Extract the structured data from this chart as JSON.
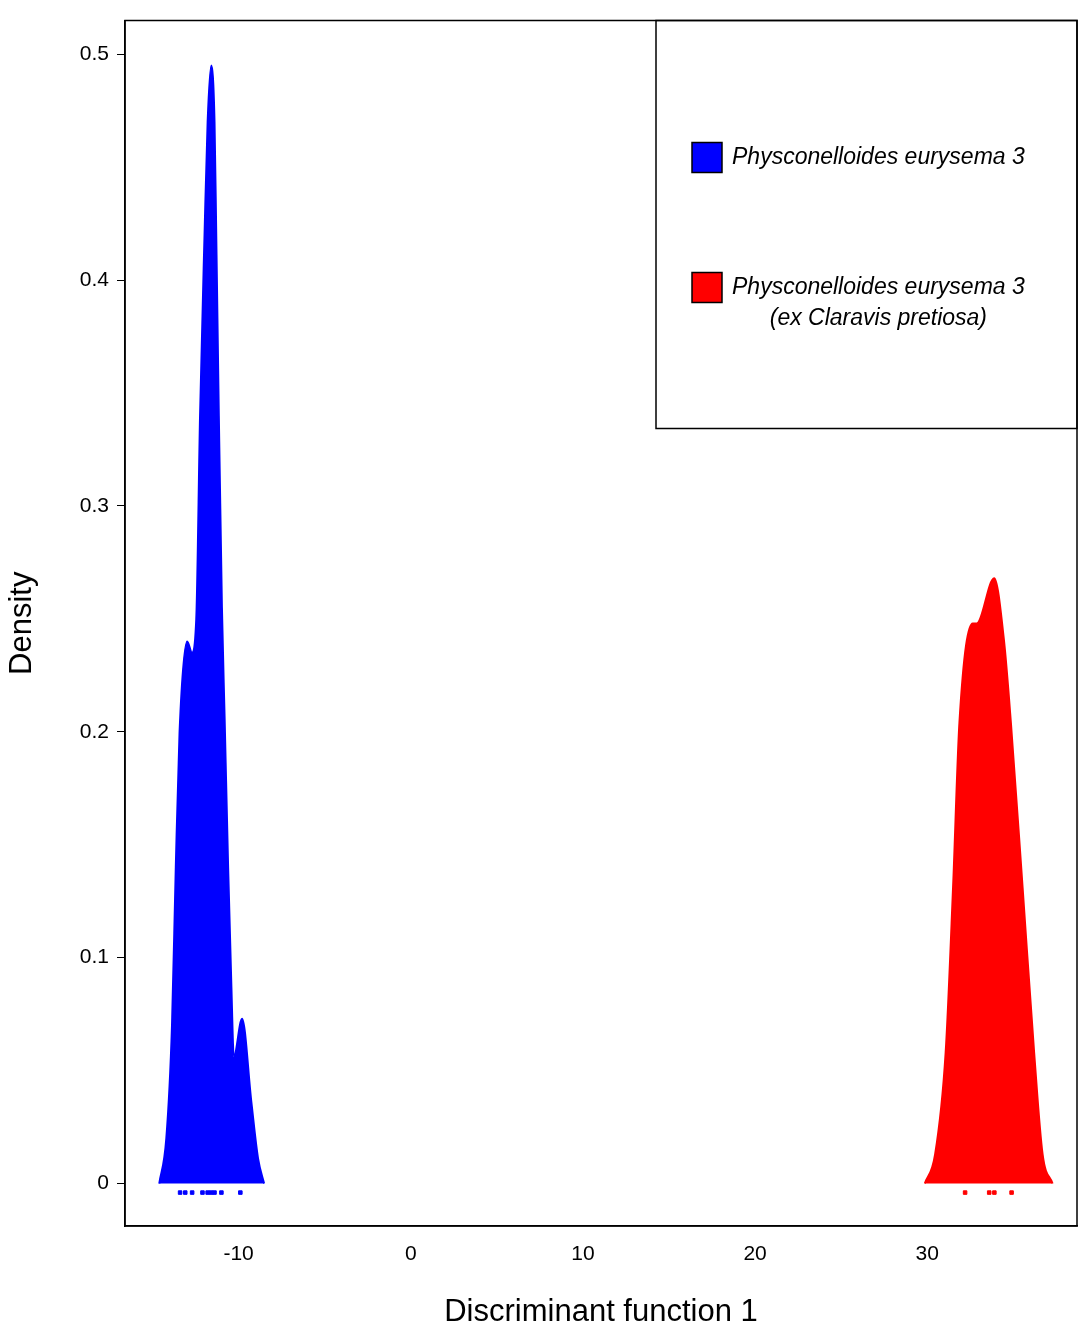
{
  "chart_data": {
    "type": "area",
    "xlabel": "Discriminant function 1",
    "ylabel": "Density",
    "xlim": [
      -16.6,
      38.7
    ],
    "ylim": [
      -0.0188,
      0.5149
    ],
    "xticks": [
      -10,
      0,
      10,
      20,
      30
    ],
    "yticks": [
      0,
      0.1,
      0.2,
      0.3,
      0.4,
      0.5
    ],
    "grid": false,
    "legend": "top right",
    "series": [
      {
        "name": "Physconelloides eurysema 3",
        "color": "#0000ff",
        "x": [
          -14.61,
          -14.2,
          -13.87,
          -13.65,
          -13.43,
          -12.99,
          -12.71,
          -12.46,
          -12.24,
          -11.98,
          -11.8,
          -11.59,
          -11.4,
          -11.3,
          -11.15,
          -10.97,
          -10.81,
          -10.61,
          -10.42,
          -10.28,
          -9.8,
          -9.26,
          -8.87,
          -8.52
        ],
        "values": [
          0,
          0.02,
          0.07,
          0.14,
          0.2,
          0.24,
          0.235,
          0.25,
          0.34,
          0.42,
          0.47,
          0.495,
          0.47,
          0.42,
          0.34,
          0.255,
          0.205,
          0.14,
          0.087,
          0.056,
          0.073,
          0.036,
          0.011,
          0
        ]
      },
      {
        "name": "Physconelloides eurysema 3\n(ex Claravis pretiosa)",
        "color": "#ff0000",
        "x": [
          29.86,
          30.46,
          31.07,
          31.5,
          31.87,
          32.64,
          32.88,
          33.89,
          34.45,
          34.86,
          35.54,
          36.21,
          36.7,
          37.28
        ],
        "values": [
          0,
          0.013,
          0.058,
          0.131,
          0.204,
          0.248,
          0.248,
          0.268,
          0.241,
          0.204,
          0.131,
          0.058,
          0.013,
          0
        ]
      },
      {
        "type": "scatter",
        "marker": "square",
        "color": "#0000ff",
        "x": [
          -13.4,
          -13.1,
          -12.7,
          -12.1,
          -11.8,
          -11.6,
          -11.4,
          -11.0,
          -9.9
        ],
        "values": [
          -0.004,
          -0.004,
          -0.004,
          -0.004,
          -0.004,
          -0.004,
          -0.004,
          -0.004,
          -0.004
        ]
      },
      {
        "type": "scatter",
        "marker": "square",
        "color": "#ff0000",
        "x": [
          32.2,
          33.6,
          33.9,
          34.9
        ],
        "values": [
          -0.004,
          -0.004,
          -0.004,
          -0.004
        ]
      }
    ]
  }
}
